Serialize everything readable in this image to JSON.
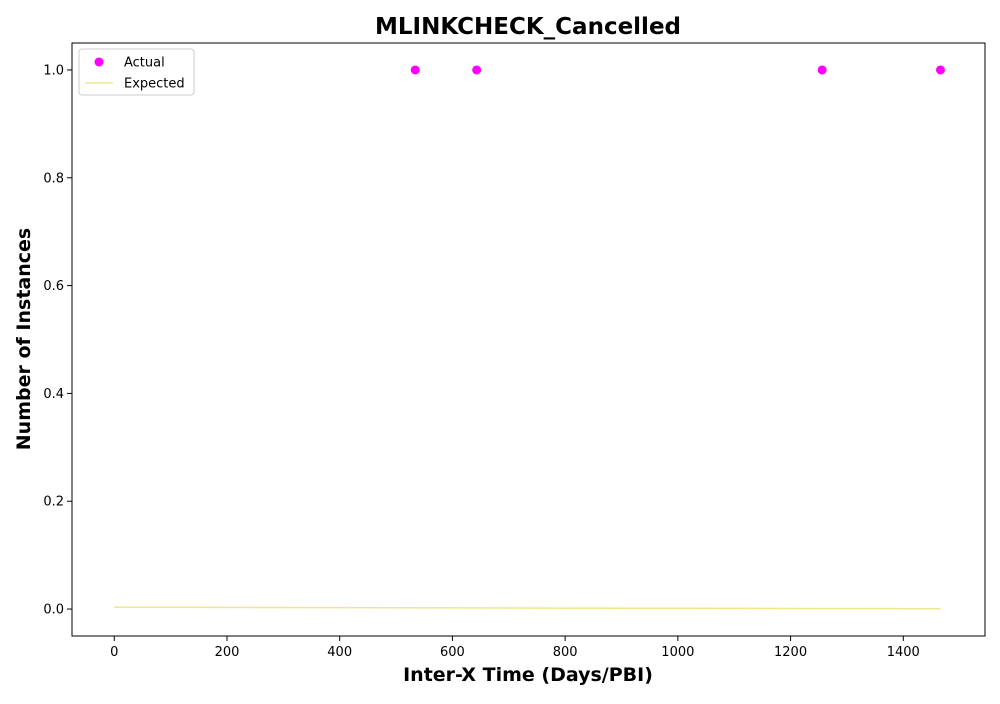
{
  "chart_data": {
    "type": "scatter",
    "title": "MLINKCHECK_Cancelled",
    "xlabel": "Inter-X Time (Days/PBI)",
    "ylabel": "Number of Instances",
    "xlim": [
      -75,
      1545
    ],
    "ylim": [
      -0.05,
      1.05
    ],
    "xticks": [
      "0",
      "200",
      "400",
      "600",
      "800",
      "1000",
      "1200",
      "1400"
    ],
    "yticks": [
      "0.0",
      "0.2",
      "0.4",
      "0.6",
      "0.8",
      "1.0"
    ],
    "grid": false,
    "legend": "top-left",
    "series": [
      {
        "name": "Actual",
        "kind": "scatter",
        "color": "#ff00ff",
        "x": [
          534,
          643,
          1256,
          1466
        ],
        "y": [
          1,
          1,
          1,
          1
        ]
      },
      {
        "name": "Expected",
        "kind": "line",
        "color": "#f0e68c",
        "x": [
          0,
          200,
          400,
          600,
          800,
          1000,
          1200,
          1466
        ],
        "y": [
          0.0035,
          0.003,
          0.0026,
          0.0022,
          0.0018,
          0.0014,
          0.0011,
          0.0006
        ]
      }
    ]
  }
}
